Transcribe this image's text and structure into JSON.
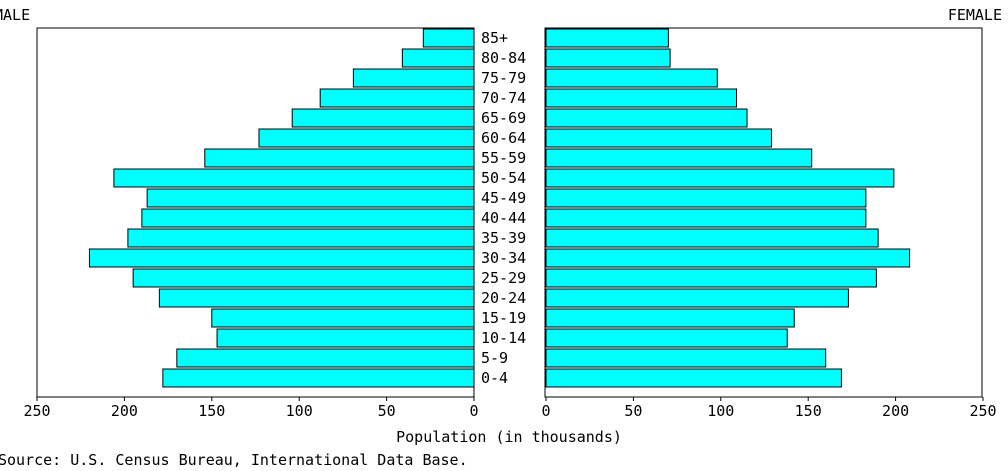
{
  "chart_data": {
    "type": "bar",
    "orientation": "horizontal-population-pyramid",
    "left_label": "MALE",
    "right_label": "FEMALE",
    "categories": [
      "85+",
      "80-84",
      "75-79",
      "70-74",
      "65-69",
      "60-64",
      "55-59",
      "50-54",
      "45-49",
      "40-44",
      "35-39",
      "30-34",
      "25-29",
      "20-24",
      "15-19",
      "10-14",
      "5-9",
      "0-4"
    ],
    "series": [
      {
        "name": "MALE",
        "values": [
          29,
          41,
          69,
          88,
          104,
          123,
          154,
          206,
          187,
          190,
          198,
          220,
          195,
          180,
          150,
          147,
          170,
          178
        ]
      },
      {
        "name": "FEMALE",
        "values": [
          70,
          71,
          98,
          109,
          115,
          129,
          152,
          199,
          183,
          183,
          190,
          208,
          189,
          173,
          142,
          138,
          160,
          169
        ]
      }
    ],
    "xlim": [
      0,
      250
    ],
    "x_ticks": [
      "250",
      "200",
      "150",
      "100",
      "50",
      "0"
    ],
    "x_ticks_right": [
      "0",
      "50",
      "100",
      "150",
      "200",
      "250"
    ],
    "xlabel": "Population (in thousands)",
    "bar_color": "#00ffff",
    "grid": false
  },
  "source": "Source: U.S. Census Bureau, International Data Base."
}
